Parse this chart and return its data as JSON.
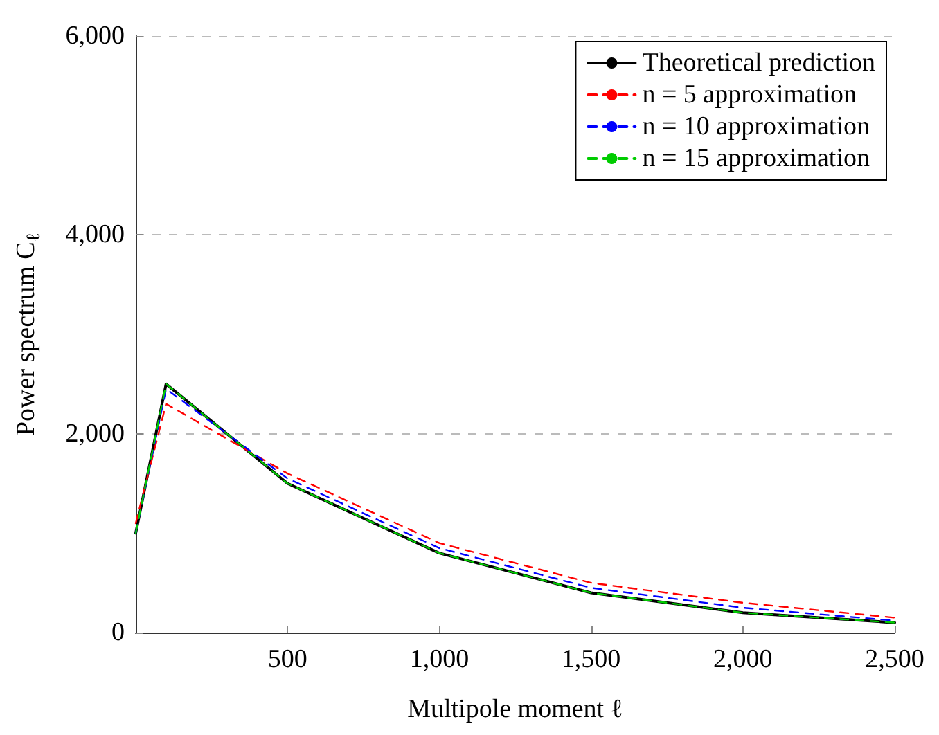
{
  "chart_data": {
    "type": "line",
    "xlabel": "Multipole moment ℓ",
    "ylabel": "Power spectrum C$_{ℓ}$",
    "x": [
      0,
      100,
      500,
      1000,
      1500,
      2000,
      2500
    ],
    "series": [
      {
        "name": "Theoretical prediction",
        "color": "#000000",
        "line_style": "solid",
        "values": [
          1000,
          2500,
          1500,
          800,
          400,
          200,
          100
        ]
      },
      {
        "name": "n = 5 approximation",
        "color": "#ff0000",
        "line_style": "dashed",
        "values": [
          1100,
          2300,
          1600,
          900,
          500,
          300,
          150
        ]
      },
      {
        "name": "n = 10 approximation",
        "color": "#0000ff",
        "line_style": "dashed",
        "values": [
          1000,
          2450,
          1550,
          850,
          450,
          250,
          120
        ]
      },
      {
        "name": "n = 15 approximation",
        "color": "#00cc00",
        "line_style": "dashed",
        "values": [
          1000,
          2500,
          1500,
          800,
          400,
          200,
          100
        ]
      }
    ],
    "xlim": [
      0,
      2500
    ],
    "xticks": [
      {
        "value": 500,
        "label": "500"
      },
      {
        "value": 1000,
        "label": "1,000"
      },
      {
        "value": 1500,
        "label": "1,500"
      },
      {
        "value": 2000,
        "label": "2,000"
      },
      {
        "value": 2500,
        "label": "2,500"
      }
    ],
    "ylim": [
      0,
      6000
    ],
    "yticks": [
      {
        "value": 0,
        "label": "0"
      },
      {
        "value": 2000,
        "label": "2,000"
      },
      {
        "value": 4000,
        "label": "4,000"
      },
      {
        "value": 6000,
        "label": "6,000"
      }
    ],
    "grid": "y",
    "legend": "top right",
    "marker": "none"
  }
}
